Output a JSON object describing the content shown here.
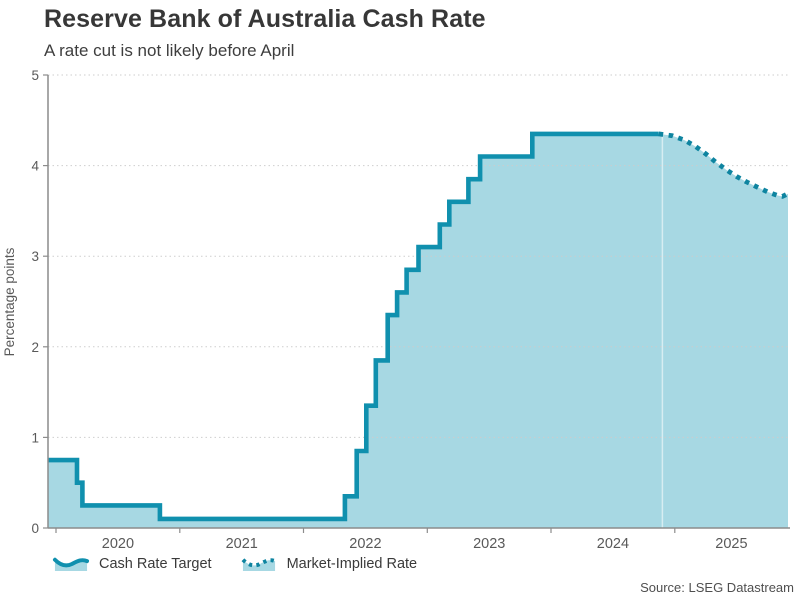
{
  "chart_data": {
    "type": "area-step",
    "title": "Reserve Bank of Australia Cash Rate",
    "subtitle": "A rate cut is not likely before April",
    "source": "Source: LSEG Datastream",
    "ylabel": "Percentage points",
    "ylim": [
      0,
      5
    ],
    "yticks": [
      0,
      1,
      2,
      3,
      4,
      5
    ],
    "xlim": [
      2019.935,
      2025.915
    ],
    "xticks": [
      2020,
      2021,
      2022,
      2023,
      2024,
      2025
    ],
    "xtick_labels": [
      "2020",
      "2021",
      "2022",
      "2023",
      "2024",
      "2025"
    ],
    "grid": "horizontal-dotted",
    "legend_position": "bottom-left",
    "forecast_divider_x": 2024.9,
    "series": [
      {
        "name": "Cash Rate Target",
        "style": "solid-step",
        "points": [
          [
            2019.935,
            0.75
          ],
          [
            2020.169,
            0.5
          ],
          [
            2020.213,
            0.25
          ],
          [
            2020.839,
            0.1
          ],
          [
            2022.334,
            0.35
          ],
          [
            2022.43,
            0.85
          ],
          [
            2022.507,
            1.35
          ],
          [
            2022.584,
            1.85
          ],
          [
            2022.68,
            2.35
          ],
          [
            2022.756,
            2.6
          ],
          [
            2022.833,
            2.85
          ],
          [
            2022.929,
            3.1
          ],
          [
            2023.101,
            3.35
          ],
          [
            2023.178,
            3.6
          ],
          [
            2023.332,
            3.85
          ],
          [
            2023.427,
            4.1
          ],
          [
            2023.849,
            4.35
          ],
          [
            2024.87,
            4.35
          ]
        ]
      },
      {
        "name": "Market-Implied Rate",
        "style": "dotted-line",
        "points": [
          [
            2024.87,
            4.35
          ],
          [
            2024.98,
            4.33
          ],
          [
            2025.08,
            4.28
          ],
          [
            2025.17,
            4.21
          ],
          [
            2025.25,
            4.13
          ],
          [
            2025.33,
            4.04
          ],
          [
            2025.42,
            3.95
          ],
          [
            2025.5,
            3.88
          ],
          [
            2025.58,
            3.82
          ],
          [
            2025.67,
            3.76
          ],
          [
            2025.75,
            3.71
          ],
          [
            2025.83,
            3.67
          ],
          [
            2025.87,
            3.66
          ],
          [
            2025.915,
            3.69
          ]
        ]
      }
    ]
  },
  "colors": {
    "line": "#1090ae",
    "dotted_line": "#0e84a0",
    "fill": "#a7d8e3",
    "grid": "#cccccc",
    "axis": "#8c8c8c",
    "tick_text": "#595959",
    "title": "#373737",
    "subtitle": "#3e3e3e",
    "legend_text": "#3a3a3a",
    "source_text": "#4f4f4f"
  }
}
